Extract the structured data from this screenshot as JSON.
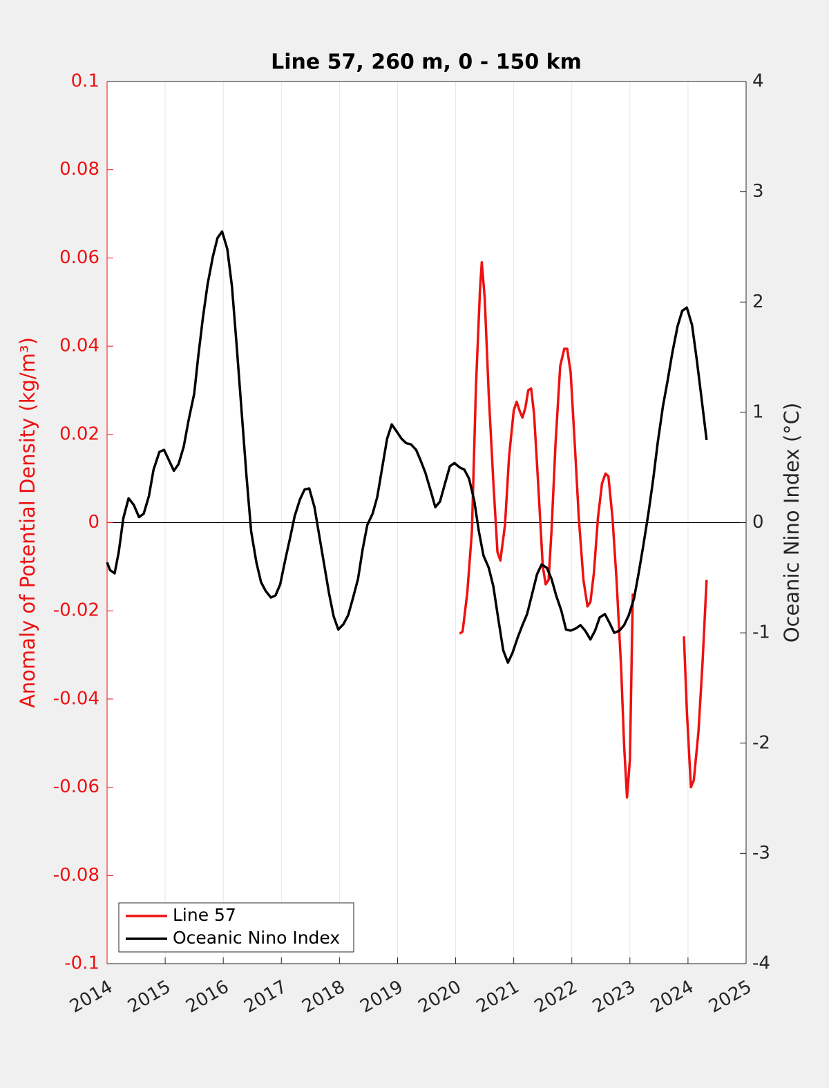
{
  "chart_data": {
    "type": "line",
    "title": "Line 57, 260 m, 0 - 150 km",
    "ylabel": "Anomaly of Potential Density (kg/m³)",
    "y2label": "Oceanic Nino Index (°C)",
    "xlim": [
      2014,
      2025
    ],
    "xticks": [
      2014,
      2015,
      2016,
      2017,
      2018,
      2019,
      2020,
      2021,
      2022,
      2023,
      2024,
      2025
    ],
    "ylim": [
      -0.1,
      0.1
    ],
    "yticks": [
      -0.1,
      -0.08,
      -0.06,
      -0.04,
      -0.02,
      0,
      0.02,
      0.04,
      0.06,
      0.08,
      0.1
    ],
    "y2lim": [
      -4,
      4
    ],
    "y2ticks": [
      -4,
      -3,
      -2,
      -1,
      0,
      1,
      2,
      3,
      4
    ],
    "grid": true,
    "legend": "lower left",
    "series": [
      {
        "name": "Line 57",
        "color": "#ee1111",
        "axis": "y",
        "x": [
          2020.07,
          2020.12,
          2020.2,
          2020.28,
          2020.35,
          2020.42,
          2020.45,
          2020.5,
          2020.57,
          2020.65,
          2020.72,
          2020.77,
          2020.85,
          2020.92,
          2021.0,
          2021.05,
          2021.1,
          2021.15,
          2021.2,
          2021.25,
          2021.3,
          2021.35,
          2021.42,
          2021.5,
          2021.55,
          2021.6,
          2021.65,
          2021.72,
          2021.8,
          2021.87,
          2021.92,
          2021.98,
          2022.05,
          2022.12,
          2022.2,
          2022.27,
          2022.32,
          2022.38,
          2022.45,
          2022.52,
          2022.58,
          2022.63,
          2022.7,
          2022.77,
          2022.85,
          2022.9,
          2022.95,
          2023.0,
          2023.05,
          null,
          2023.93,
          2023.98,
          2024.05,
          2024.1,
          2024.18,
          2024.25,
          2024.32
        ],
        "values": [
          -0.0252,
          -0.0247,
          -0.016,
          -0.002,
          0.031,
          0.053,
          0.059,
          0.051,
          0.029,
          0.009,
          -0.0067,
          -0.0086,
          -0.0005,
          0.015,
          0.0254,
          0.0274,
          0.0254,
          0.0238,
          0.026,
          0.03,
          0.0304,
          0.0246,
          0.009,
          -0.0099,
          -0.014,
          -0.013,
          -0.002,
          0.018,
          0.0355,
          0.0394,
          0.0394,
          0.034,
          0.018,
          0.0011,
          -0.013,
          -0.019,
          -0.018,
          -0.0114,
          0.0011,
          0.0089,
          0.0111,
          0.0105,
          0.0011,
          -0.013,
          -0.0333,
          -0.0505,
          -0.0623,
          -0.0537,
          -0.0161,
          null,
          -0.0258,
          -0.0427,
          -0.06,
          -0.0584,
          -0.0474,
          -0.0318,
          -0.013
        ]
      },
      {
        "name": "Oceanic Nino Index",
        "color": "#000000",
        "axis": "y2",
        "x": [
          2014.0,
          2014.05,
          2014.13,
          2014.2,
          2014.28,
          2014.37,
          2014.46,
          2014.55,
          2014.63,
          2014.72,
          2014.8,
          2014.9,
          2014.98,
          2015.07,
          2015.15,
          2015.23,
          2015.32,
          2015.4,
          2015.5,
          2015.57,
          2015.65,
          2015.73,
          2015.82,
          2015.9,
          2015.98,
          2016.07,
          2016.15,
          2016.23,
          2016.32,
          2016.4,
          2016.48,
          2016.57,
          2016.65,
          2016.73,
          2016.82,
          2016.9,
          2016.98,
          2017.07,
          2017.15,
          2017.23,
          2017.32,
          2017.4,
          2017.48,
          2017.57,
          2017.65,
          2017.73,
          2017.82,
          2017.9,
          2017.98,
          2018.07,
          2018.15,
          2018.23,
          2018.32,
          2018.4,
          2018.48,
          2018.57,
          2018.65,
          2018.73,
          2018.82,
          2018.9,
          2018.98,
          2019.07,
          2019.15,
          2019.23,
          2019.32,
          2019.4,
          2019.48,
          2019.57,
          2019.65,
          2019.73,
          2019.82,
          2019.9,
          2019.98,
          2020.07,
          2020.15,
          2020.23,
          2020.32,
          2020.4,
          2020.48,
          2020.57,
          2020.65,
          2020.73,
          2020.82,
          2020.9,
          2020.98,
          2021.07,
          2021.15,
          2021.23,
          2021.32,
          2021.4,
          2021.48,
          2021.57,
          2021.65,
          2021.73,
          2021.82,
          2021.9,
          2021.98,
          2022.07,
          2022.15,
          2022.23,
          2022.32,
          2022.4,
          2022.48,
          2022.57,
          2022.65,
          2022.73,
          2022.82,
          2022.9,
          2022.98,
          2023.07,
          2023.15,
          2023.23,
          2023.32,
          2023.4,
          2023.48,
          2023.57,
          2023.65,
          2023.73,
          2023.82,
          2023.9,
          2023.98,
          2024.07,
          2024.15,
          2024.23,
          2024.32
        ],
        "values": [
          -0.36,
          -0.43,
          -0.46,
          -0.27,
          0.04,
          0.22,
          0.16,
          0.05,
          0.08,
          0.24,
          0.48,
          0.64,
          0.66,
          0.56,
          0.47,
          0.53,
          0.69,
          0.92,
          1.17,
          1.51,
          1.86,
          2.16,
          2.41,
          2.58,
          2.64,
          2.48,
          2.14,
          1.61,
          0.98,
          0.42,
          -0.08,
          -0.36,
          -0.54,
          -0.62,
          -0.68,
          -0.66,
          -0.56,
          -0.33,
          -0.14,
          0.06,
          0.21,
          0.3,
          0.31,
          0.14,
          -0.11,
          -0.36,
          -0.64,
          -0.85,
          -0.97,
          -0.92,
          -0.84,
          -0.69,
          -0.51,
          -0.24,
          -0.02,
          0.08,
          0.23,
          0.48,
          0.76,
          0.89,
          0.83,
          0.76,
          0.72,
          0.71,
          0.66,
          0.56,
          0.45,
          0.29,
          0.14,
          0.19,
          0.36,
          0.51,
          0.54,
          0.5,
          0.48,
          0.4,
          0.2,
          -0.08,
          -0.3,
          -0.41,
          -0.58,
          -0.86,
          -1.16,
          -1.27,
          -1.18,
          -1.04,
          -0.93,
          -0.83,
          -0.64,
          -0.47,
          -0.38,
          -0.41,
          -0.51,
          -0.66,
          -0.8,
          -0.97,
          -0.98,
          -0.96,
          -0.93,
          -0.98,
          -1.06,
          -0.98,
          -0.86,
          -0.83,
          -0.91,
          -1.0,
          -0.98,
          -0.93,
          -0.84,
          -0.69,
          -0.46,
          -0.21,
          0.09,
          0.39,
          0.73,
          1.06,
          1.29,
          1.54,
          1.78,
          1.92,
          1.95,
          1.79,
          1.48,
          1.14,
          0.75
        ]
      }
    ]
  }
}
